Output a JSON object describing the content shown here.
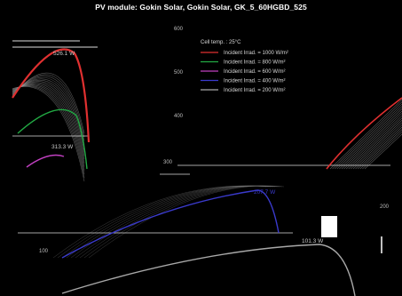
{
  "chart_data": {
    "type": "line",
    "title": "PV module: Gokin Solar, Gokin Solar, GK_5_60HGBD_525",
    "xlabel": "",
    "ylabel": "",
    "ylim": [
      0,
      600
    ],
    "y_ticks": [
      "600",
      "500",
      "400"
    ],
    "legend_title": "Cell temp. : 25°C",
    "legend_placement": "top-center",
    "series": [
      {
        "name": "Incident Irrad. = 1000 W/m²",
        "color": "#e03030"
      },
      {
        "name": "Incident Irrad. = 800 W/m²",
        "color": "#22aa44"
      },
      {
        "name": "Incident Irrad. = 600 W/m²",
        "color": "#c040c0"
      },
      {
        "name": "Incident Irrad. = 400 W/m²",
        "color": "#3a3acc"
      },
      {
        "name": "Incident Irrad. = 200 W/m²",
        "color": "#a8a8a8"
      }
    ],
    "annotations": [
      {
        "text": "526.1 W",
        "color": "#c8c8c8"
      },
      {
        "text": "313.3 W",
        "color": "#c8c8c8"
      },
      {
        "text": "207.7 W",
        "color": "#3a3acc"
      },
      {
        "text": "101.3 W",
        "color": "#c8c8c8"
      }
    ],
    "side_labels": [
      "100",
      "200",
      "300"
    ]
  }
}
